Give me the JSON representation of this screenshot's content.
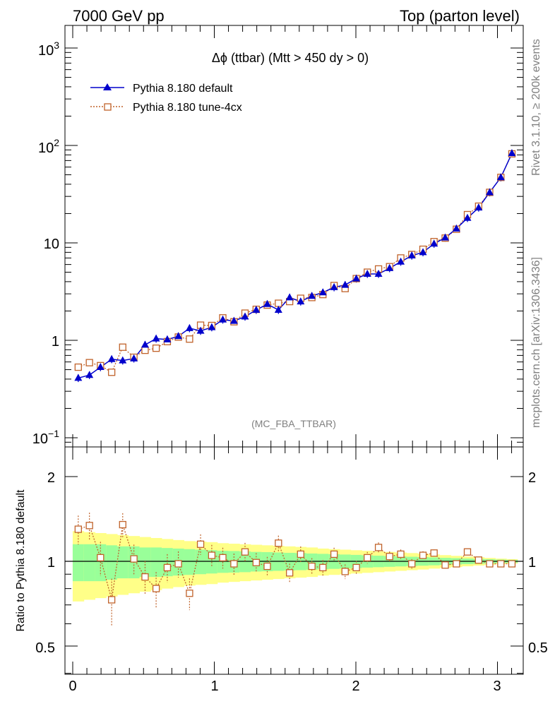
{
  "header": {
    "left": "7000 GeV pp",
    "right": "Top (parton level)"
  },
  "side": {
    "rivet": "Rivet 3.1.10, ≥ 200k events",
    "mcplots": "mcplots.cern.ch [arXiv:1306.3436]"
  },
  "plot": {
    "title": "Δϕ (ttbar) (Mtt > 450 dy > 0)",
    "watermark": "(MC_FBA_TTBAR)",
    "ratio_ylabel": "Ratio to Pythia 8.180 default"
  },
  "ticks": {
    "main_y": [
      "10−1",
      "1",
      "10",
      "10²",
      "10³"
    ],
    "ratio_y": [
      "0.5",
      "1",
      "2"
    ],
    "x": [
      "0",
      "1",
      "2",
      "3"
    ]
  },
  "colors": {
    "default": "#0000cc",
    "tune": "#c0622a",
    "band_inner": "#99ff99",
    "band_outer": "#ffff88"
  },
  "chart_data": [
    {
      "type": "line",
      "yscale": "log",
      "ylim": [
        0.08,
        1800
      ],
      "xlim": [
        -0.04,
        3.2
      ],
      "legend": "top-left",
      "x": [
        0.039,
        0.118,
        0.196,
        0.275,
        0.353,
        0.432,
        0.511,
        0.589,
        0.668,
        0.746,
        0.825,
        0.903,
        0.982,
        1.06,
        1.139,
        1.217,
        1.296,
        1.374,
        1.453,
        1.532,
        1.61,
        1.689,
        1.767,
        1.846,
        1.924,
        2.003,
        2.081,
        2.16,
        2.238,
        2.317,
        2.395,
        2.474,
        2.552,
        2.631,
        2.71,
        2.788,
        2.867,
        2.945,
        3.024,
        3.102
      ],
      "series": [
        {
          "name": "Pythia 8.180 default",
          "marker": "triangle",
          "values": [
            0.41,
            0.44,
            0.53,
            0.64,
            0.62,
            0.65,
            0.9,
            1.04,
            1.02,
            1.1,
            1.33,
            1.25,
            1.36,
            1.63,
            1.58,
            1.75,
            2.05,
            2.35,
            2.05,
            2.75,
            2.5,
            2.85,
            3.1,
            3.5,
            3.7,
            4.3,
            4.8,
            4.8,
            5.5,
            6.4,
            7.4,
            8.0,
            9.8,
            11.3,
            14.0,
            18.0,
            23.0,
            33.0,
            47.0,
            83.0
          ]
        },
        {
          "name": "Pythia 8.180 tune-4cx",
          "marker": "open-square",
          "values": [
            0.53,
            0.59,
            0.55,
            0.47,
            0.85,
            0.67,
            0.79,
            0.83,
            0.97,
            1.08,
            1.03,
            1.43,
            1.42,
            1.7,
            1.55,
            1.9,
            2.08,
            2.3,
            2.4,
            2.5,
            2.7,
            2.75,
            2.95,
            3.65,
            3.4,
            4.3,
            5.0,
            5.4,
            5.7,
            7.0,
            7.6,
            8.6,
            10.3,
            11.2,
            13.8,
            19.5,
            23.8,
            33.0,
            47.0,
            82.0
          ]
        }
      ]
    },
    {
      "type": "line",
      "ylim": [
        0.4,
        2.4
      ],
      "yscale": "log",
      "ylabel": "Ratio to Pythia 8.180 default",
      "x": [
        0.039,
        0.118,
        0.196,
        0.275,
        0.353,
        0.432,
        0.511,
        0.589,
        0.668,
        0.746,
        0.825,
        0.903,
        0.982,
        1.06,
        1.139,
        1.217,
        1.296,
        1.374,
        1.453,
        1.532,
        1.61,
        1.689,
        1.767,
        1.846,
        1.924,
        2.003,
        2.081,
        2.16,
        2.238,
        2.317,
        2.395,
        2.474,
        2.552,
        2.631,
        2.71,
        2.788,
        2.867,
        2.945,
        3.024,
        3.102
      ],
      "series": [
        {
          "name": "Pythia 8.180 tune-4cx",
          "values": [
            1.3,
            1.34,
            1.03,
            0.73,
            1.35,
            1.02,
            0.88,
            0.8,
            0.95,
            0.98,
            0.77,
            1.15,
            1.05,
            1.03,
            0.98,
            1.08,
            0.99,
            0.96,
            1.16,
            0.91,
            1.06,
            0.96,
            0.95,
            1.06,
            0.92,
            0.95,
            1.03,
            1.12,
            1.04,
            1.06,
            0.98,
            1.05,
            1.07,
            0.97,
            0.98,
            1.08,
            1.01,
            0.98,
            0.98,
            0.98
          ]
        }
      ],
      "band_inner": [
        0.15,
        0.15,
        0.15,
        0.14,
        0.13,
        0.13,
        0.12,
        0.12,
        0.115,
        0.11,
        0.105,
        0.1,
        0.095,
        0.09,
        0.088,
        0.085,
        0.08,
        0.078,
        0.075,
        0.072,
        0.07,
        0.066,
        0.063,
        0.06,
        0.057,
        0.054,
        0.05,
        0.047,
        0.044,
        0.041,
        0.038,
        0.035,
        0.032,
        0.029,
        0.026,
        0.023,
        0.02,
        0.017,
        0.014,
        0.012
      ],
      "band_outer": [
        0.28,
        0.27,
        0.26,
        0.25,
        0.24,
        0.23,
        0.22,
        0.21,
        0.2,
        0.19,
        0.18,
        0.175,
        0.17,
        0.16,
        0.155,
        0.15,
        0.145,
        0.14,
        0.135,
        0.13,
        0.125,
        0.12,
        0.11,
        0.105,
        0.1,
        0.095,
        0.09,
        0.085,
        0.08,
        0.075,
        0.07,
        0.065,
        0.058,
        0.052,
        0.046,
        0.04,
        0.034,
        0.028,
        0.022,
        0.018
      ]
    }
  ]
}
